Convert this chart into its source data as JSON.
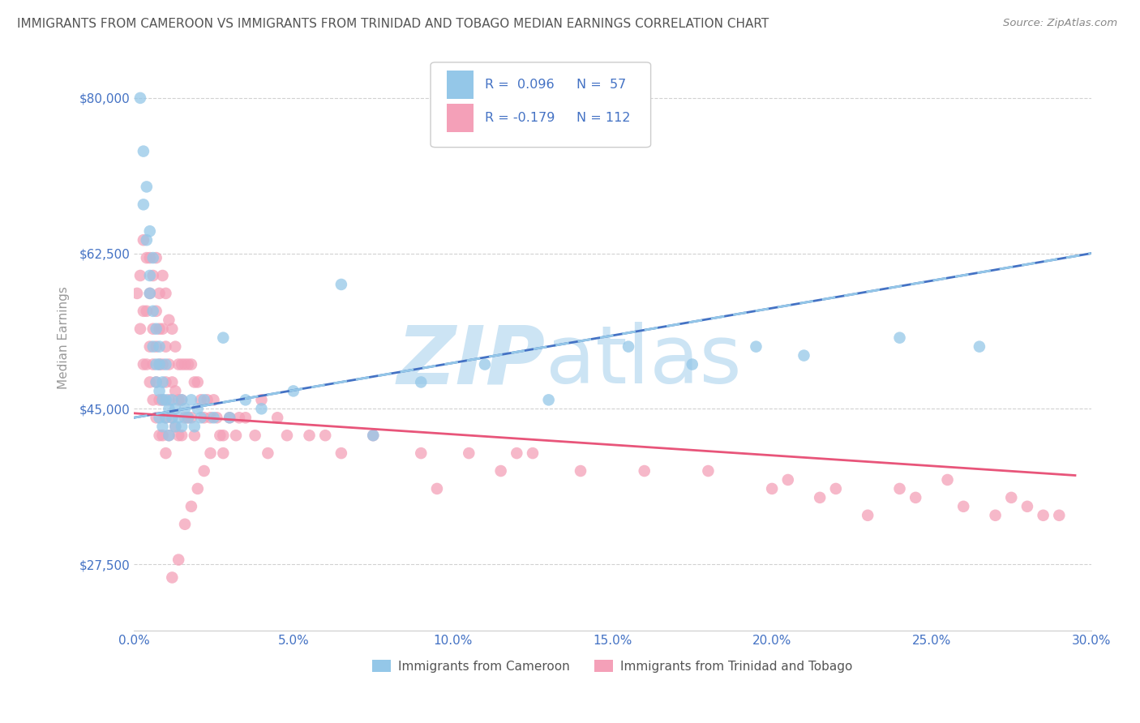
{
  "title": "IMMIGRANTS FROM CAMEROON VS IMMIGRANTS FROM TRINIDAD AND TOBAGO MEDIAN EARNINGS CORRELATION CHART",
  "source": "Source: ZipAtlas.com",
  "ylabel": "Median Earnings",
  "xmin": 0.0,
  "xmax": 0.3,
  "ymin": 20000,
  "ymax": 86000,
  "yticks": [
    27500,
    45000,
    62500,
    80000
  ],
  "ytick_labels": [
    "$27,500",
    "$45,000",
    "$62,500",
    "$80,000"
  ],
  "xticks": [
    0.0,
    0.05,
    0.1,
    0.15,
    0.2,
    0.25,
    0.3
  ],
  "xtick_labels": [
    "0.0%",
    "5.0%",
    "10.0%",
    "15.0%",
    "20.0%",
    "25.0%",
    "30.0%"
  ],
  "color_blue": "#94c7e8",
  "color_pink": "#f4a0b8",
  "color_trendline_blue_solid": "#4472c4",
  "color_trendline_blue_dash": "#94c7e8",
  "color_trendline_pink": "#e8557a",
  "watermark_zip_color": "#cce4f4",
  "watermark_atlas_color": "#cce4f4",
  "background_color": "#ffffff",
  "grid_color": "#cccccc",
  "title_color": "#555555",
  "axis_color": "#4472c4",
  "legend_border": "#cccccc",
  "blue_x": [
    0.002,
    0.003,
    0.003,
    0.004,
    0.004,
    0.005,
    0.005,
    0.005,
    0.006,
    0.006,
    0.006,
    0.007,
    0.007,
    0.007,
    0.008,
    0.008,
    0.008,
    0.008,
    0.009,
    0.009,
    0.009,
    0.01,
    0.01,
    0.01,
    0.011,
    0.011,
    0.012,
    0.012,
    0.013,
    0.013,
    0.014,
    0.015,
    0.015,
    0.016,
    0.017,
    0.018,
    0.019,
    0.02,
    0.021,
    0.022,
    0.025,
    0.028,
    0.03,
    0.035,
    0.04,
    0.05,
    0.065,
    0.075,
    0.09,
    0.11,
    0.13,
    0.155,
    0.175,
    0.195,
    0.21,
    0.24,
    0.265
  ],
  "blue_y": [
    80000,
    74000,
    68000,
    70000,
    64000,
    65000,
    60000,
    58000,
    62000,
    56000,
    52000,
    50000,
    54000,
    48000,
    52000,
    47000,
    44000,
    50000,
    46000,
    48000,
    43000,
    50000,
    44000,
    46000,
    45000,
    42000,
    46000,
    44000,
    45000,
    43000,
    44000,
    46000,
    43000,
    45000,
    44000,
    46000,
    43000,
    45000,
    44000,
    46000,
    44000,
    53000,
    44000,
    46000,
    45000,
    47000,
    59000,
    42000,
    48000,
    50000,
    46000,
    52000,
    50000,
    52000,
    51000,
    53000,
    52000
  ],
  "pink_x": [
    0.001,
    0.002,
    0.002,
    0.003,
    0.003,
    0.003,
    0.004,
    0.004,
    0.004,
    0.005,
    0.005,
    0.005,
    0.005,
    0.006,
    0.006,
    0.006,
    0.006,
    0.007,
    0.007,
    0.007,
    0.007,
    0.007,
    0.008,
    0.008,
    0.008,
    0.008,
    0.008,
    0.009,
    0.009,
    0.009,
    0.009,
    0.009,
    0.01,
    0.01,
    0.01,
    0.01,
    0.011,
    0.011,
    0.011,
    0.011,
    0.012,
    0.012,
    0.012,
    0.013,
    0.013,
    0.013,
    0.014,
    0.014,
    0.014,
    0.015,
    0.015,
    0.015,
    0.016,
    0.016,
    0.017,
    0.017,
    0.018,
    0.018,
    0.019,
    0.019,
    0.02,
    0.021,
    0.022,
    0.023,
    0.024,
    0.025,
    0.026,
    0.027,
    0.028,
    0.03,
    0.032,
    0.035,
    0.038,
    0.042,
    0.048,
    0.055,
    0.065,
    0.075,
    0.09,
    0.105,
    0.12,
    0.14,
    0.16,
    0.18,
    0.2,
    0.22,
    0.24,
    0.26,
    0.28,
    0.205,
    0.215,
    0.23,
    0.245,
    0.255,
    0.27,
    0.275,
    0.285,
    0.29,
    0.125,
    0.115,
    0.095,
    0.06,
    0.045,
    0.04,
    0.033,
    0.028,
    0.024,
    0.022,
    0.02,
    0.018,
    0.016,
    0.014,
    0.012,
    0.01
  ],
  "pink_y": [
    58000,
    60000,
    54000,
    64000,
    56000,
    50000,
    62000,
    56000,
    50000,
    62000,
    58000,
    52000,
    48000,
    60000,
    54000,
    50000,
    46000,
    62000,
    56000,
    52000,
    48000,
    44000,
    58000,
    54000,
    50000,
    46000,
    42000,
    60000,
    54000,
    50000,
    46000,
    42000,
    58000,
    52000,
    48000,
    44000,
    55000,
    50000,
    46000,
    42000,
    54000,
    48000,
    44000,
    52000,
    47000,
    43000,
    50000,
    46000,
    42000,
    50000,
    46000,
    42000,
    50000,
    44000,
    50000,
    44000,
    50000,
    44000,
    48000,
    42000,
    48000,
    46000,
    44000,
    46000,
    44000,
    46000,
    44000,
    42000,
    40000,
    44000,
    42000,
    44000,
    42000,
    40000,
    42000,
    42000,
    40000,
    42000,
    40000,
    40000,
    40000,
    38000,
    38000,
    38000,
    36000,
    36000,
    36000,
    34000,
    34000,
    37000,
    35000,
    33000,
    35000,
    37000,
    33000,
    35000,
    33000,
    33000,
    40000,
    38000,
    36000,
    42000,
    44000,
    46000,
    44000,
    42000,
    40000,
    38000,
    36000,
    34000,
    32000,
    28000,
    26000,
    40000
  ],
  "blue_trend_x0": 0.0,
  "blue_trend_y0": 44000,
  "blue_trend_x1": 0.3,
  "blue_trend_y1": 62500,
  "pink_trend_x0": 0.0,
  "pink_trend_y0": 44500,
  "pink_trend_x1": 0.295,
  "pink_trend_y1": 37500
}
